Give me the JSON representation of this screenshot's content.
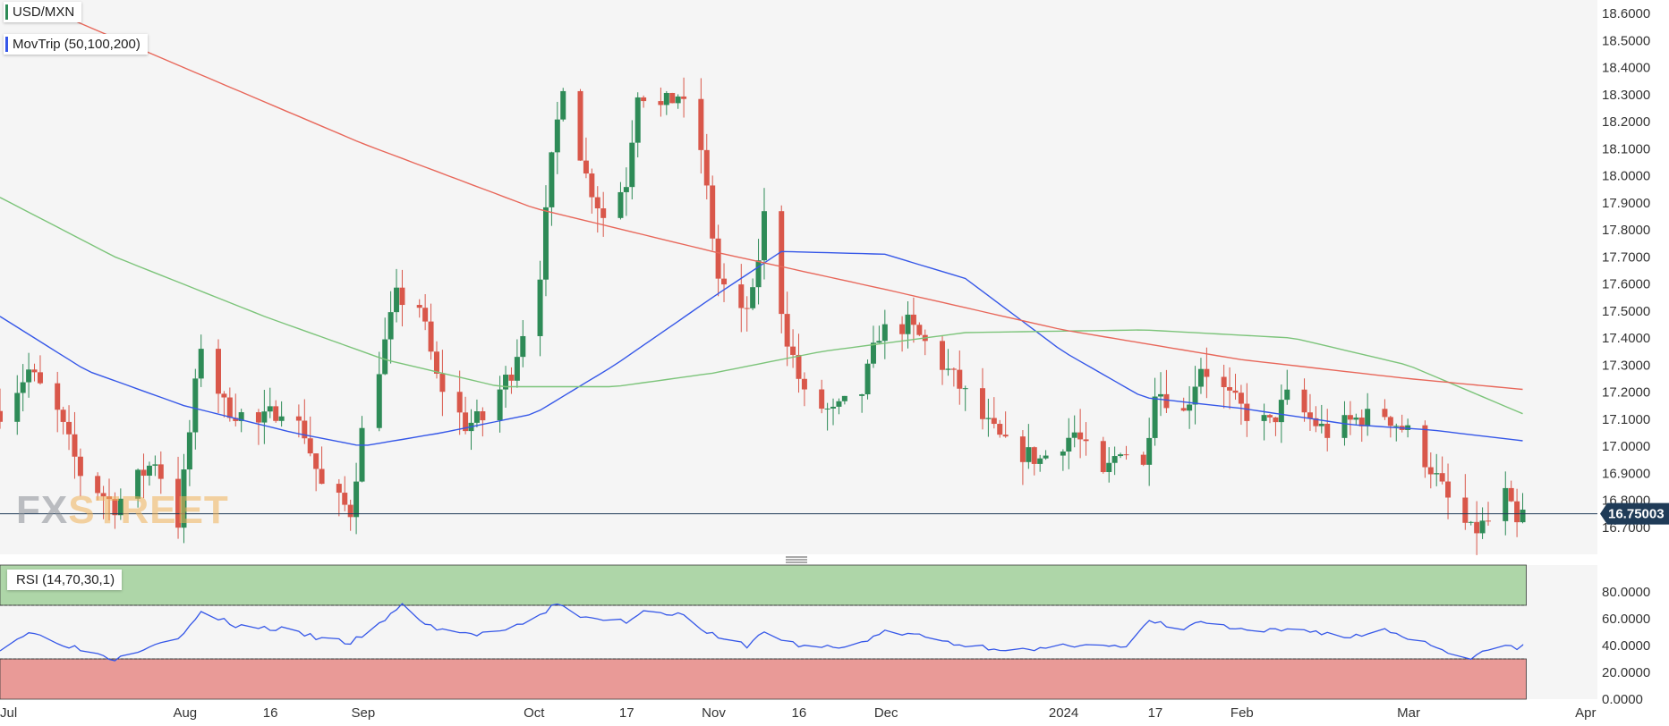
{
  "legend": {
    "pair": "USD/MXN",
    "moving_averages": "MovTrip (50,100,200)",
    "rsi": "RSI (14,70,30,1)"
  },
  "watermark": {
    "part1": "FX",
    "part2": "STREET"
  },
  "colors": {
    "bull": "#2e8b57",
    "bear": "#d9574a",
    "ma50": "#3557e8",
    "ma100": "#7cc47a",
    "ma200": "#e8675a",
    "rsi_line": "#3557e8",
    "overbought_zone": "#aed6a8",
    "oversold_zone": "#e99a97",
    "price_line": "#1f3b57",
    "price_badge": "#1f3b57"
  },
  "chart_data": {
    "type": "candlestick",
    "symbol": "USD/MXN",
    "last_price": "16.75003",
    "price_axis": {
      "ylim": [
        16.6,
        18.65
      ],
      "ticks": [
        "18.6000",
        "18.5000",
        "18.4000",
        "18.3000",
        "18.2000",
        "18.1000",
        "18.0000",
        "17.9000",
        "17.8000",
        "17.7000",
        "17.6000",
        "17.5000",
        "17.4000",
        "17.3000",
        "17.2000",
        "17.1000",
        "17.0000",
        "16.9000",
        "16.8000",
        "16.7000"
      ]
    },
    "rsi_axis": {
      "ylim": [
        0,
        100
      ],
      "ticks": [
        "80.0000",
        "60.0000",
        "40.0000",
        "20.0000",
        "0.0000"
      ],
      "overbought": 70,
      "oversold": 30
    },
    "x_axis": {
      "start": "2023-06-30",
      "end": "2024-04-03",
      "labels": [
        {
          "text": "Jul",
          "date": "2023-07-01"
        },
        {
          "text": "Aug",
          "date": "2023-08-01"
        },
        {
          "text": "16",
          "date": "2023-08-16"
        },
        {
          "text": "Sep",
          "date": "2023-09-01"
        },
        {
          "text": "Oct",
          "date": "2023-10-01"
        },
        {
          "text": "17",
          "date": "2023-10-17"
        },
        {
          "text": "Nov",
          "date": "2023-11-01"
        },
        {
          "text": "16",
          "date": "2023-11-16"
        },
        {
          "text": "Dec",
          "date": "2023-12-01"
        },
        {
          "text": "2024",
          "date": "2024-01-01"
        },
        {
          "text": "17",
          "date": "2024-01-17"
        },
        {
          "text": "Feb",
          "date": "2024-02-01"
        },
        {
          "text": "Mar",
          "date": "2024-03-01"
        },
        {
          "text": "Apr",
          "date": "2024-04-01"
        }
      ]
    },
    "close_anchors": [
      {
        "date": "2023-06-30",
        "value": 17.13
      },
      {
        "date": "2023-07-05",
        "value": 17.28
      },
      {
        "date": "2023-07-10",
        "value": 17.12
      },
      {
        "date": "2023-07-14",
        "value": 16.9
      },
      {
        "date": "2023-07-20",
        "value": 16.78
      },
      {
        "date": "2023-07-24",
        "value": 16.88
      },
      {
        "date": "2023-07-27",
        "value": 16.95
      },
      {
        "date": "2023-07-31",
        "value": 16.72
      },
      {
        "date": "2023-08-04",
        "value": 17.38
      },
      {
        "date": "2023-08-08",
        "value": 17.15
      },
      {
        "date": "2023-08-14",
        "value": 17.08
      },
      {
        "date": "2023-08-18",
        "value": 17.15
      },
      {
        "date": "2023-08-22",
        "value": 17.05
      },
      {
        "date": "2023-08-25",
        "value": 16.85
      },
      {
        "date": "2023-08-30",
        "value": 16.76
      },
      {
        "date": "2023-09-01",
        "value": 17.05
      },
      {
        "date": "2023-09-05",
        "value": 17.38
      },
      {
        "date": "2023-09-07",
        "value": 17.55
      },
      {
        "date": "2023-09-11",
        "value": 17.52
      },
      {
        "date": "2023-09-14",
        "value": 17.25
      },
      {
        "date": "2023-09-19",
        "value": 17.08
      },
      {
        "date": "2023-09-22",
        "value": 17.1
      },
      {
        "date": "2023-09-27",
        "value": 17.28
      },
      {
        "date": "2023-10-02",
        "value": 17.65
      },
      {
        "date": "2023-10-04",
        "value": 18.05
      },
      {
        "date": "2023-10-06",
        "value": 18.35
      },
      {
        "date": "2023-10-10",
        "value": 18.0
      },
      {
        "date": "2023-10-13",
        "value": 17.85
      },
      {
        "date": "2023-10-17",
        "value": 17.98
      },
      {
        "date": "2023-10-19",
        "value": 18.32
      },
      {
        "date": "2023-10-23",
        "value": 18.25
      },
      {
        "date": "2023-10-26",
        "value": 18.3
      },
      {
        "date": "2023-10-30",
        "value": 18.1
      },
      {
        "date": "2023-11-02",
        "value": 17.62
      },
      {
        "date": "2023-11-06",
        "value": 17.48
      },
      {
        "date": "2023-11-08",
        "value": 17.55
      },
      {
        "date": "2023-11-10",
        "value": 17.85
      },
      {
        "date": "2023-11-14",
        "value": 17.4
      },
      {
        "date": "2023-11-17",
        "value": 17.18
      },
      {
        "date": "2023-11-22",
        "value": 17.12
      },
      {
        "date": "2023-11-27",
        "value": 17.2
      },
      {
        "date": "2023-11-30",
        "value": 17.42
      },
      {
        "date": "2023-12-05",
        "value": 17.45
      },
      {
        "date": "2023-12-08",
        "value": 17.38
      },
      {
        "date": "2023-12-13",
        "value": 17.25
      },
      {
        "date": "2023-12-18",
        "value": 17.1
      },
      {
        "date": "2023-12-22",
        "value": 17.0
      },
      {
        "date": "2023-12-28",
        "value": 16.95
      },
      {
        "date": "2024-01-03",
        "value": 17.05
      },
      {
        "date": "2024-01-08",
        "value": 16.88
      },
      {
        "date": "2024-01-11",
        "value": 17.0
      },
      {
        "date": "2024-01-15",
        "value": 16.92
      },
      {
        "date": "2024-01-17",
        "value": 17.22
      },
      {
        "date": "2024-01-22",
        "value": 17.12
      },
      {
        "date": "2024-01-25",
        "value": 17.3
      },
      {
        "date": "2024-01-30",
        "value": 17.18
      },
      {
        "date": "2024-02-02",
        "value": 17.12
      },
      {
        "date": "2024-02-06",
        "value": 17.08
      },
      {
        "date": "2024-02-09",
        "value": 17.18
      },
      {
        "date": "2024-02-13",
        "value": 17.1
      },
      {
        "date": "2024-02-16",
        "value": 17.05
      },
      {
        "date": "2024-02-21",
        "value": 17.1
      },
      {
        "date": "2024-02-26",
        "value": 17.12
      },
      {
        "date": "2024-03-01",
        "value": 17.05
      },
      {
        "date": "2024-03-05",
        "value": 16.92
      },
      {
        "date": "2024-03-08",
        "value": 16.8
      },
      {
        "date": "2024-03-12",
        "value": 16.68
      },
      {
        "date": "2024-03-15",
        "value": 16.72
      },
      {
        "date": "2024-03-18",
        "value": 16.82
      },
      {
        "date": "2024-03-20",
        "value": 16.7
      },
      {
        "date": "2024-03-21",
        "value": 16.75
      }
    ],
    "moving_averages": [
      {
        "name": "MA50",
        "points": [
          {
            "date": "2023-06-30",
            "value": 17.48
          },
          {
            "date": "2023-07-15",
            "value": 17.28
          },
          {
            "date": "2023-08-01",
            "value": 17.15
          },
          {
            "date": "2023-08-20",
            "value": 17.05
          },
          {
            "date": "2023-09-01",
            "value": 17.0
          },
          {
            "date": "2023-09-15",
            "value": 17.05
          },
          {
            "date": "2023-10-01",
            "value": 17.12
          },
          {
            "date": "2023-10-15",
            "value": 17.3
          },
          {
            "date": "2023-11-01",
            "value": 17.55
          },
          {
            "date": "2023-11-13",
            "value": 17.72
          },
          {
            "date": "2023-12-01",
            "value": 17.71
          },
          {
            "date": "2023-12-15",
            "value": 17.62
          },
          {
            "date": "2024-01-01",
            "value": 17.35
          },
          {
            "date": "2024-01-15",
            "value": 17.18
          },
          {
            "date": "2024-02-01",
            "value": 17.14
          },
          {
            "date": "2024-02-20",
            "value": 17.08
          },
          {
            "date": "2024-03-05",
            "value": 17.06
          },
          {
            "date": "2024-03-21",
            "value": 17.02
          }
        ]
      },
      {
        "name": "MA100",
        "points": [
          {
            "date": "2023-06-30",
            "value": 17.92
          },
          {
            "date": "2023-07-20",
            "value": 17.7
          },
          {
            "date": "2023-08-15",
            "value": 17.48
          },
          {
            "date": "2023-09-05",
            "value": 17.32
          },
          {
            "date": "2023-09-25",
            "value": 17.22
          },
          {
            "date": "2023-10-15",
            "value": 17.22
          },
          {
            "date": "2023-11-01",
            "value": 17.27
          },
          {
            "date": "2023-11-20",
            "value": 17.35
          },
          {
            "date": "2023-12-15",
            "value": 17.42
          },
          {
            "date": "2024-01-15",
            "value": 17.43
          },
          {
            "date": "2024-02-10",
            "value": 17.4
          },
          {
            "date": "2024-03-01",
            "value": 17.3
          },
          {
            "date": "2024-03-21",
            "value": 17.12
          }
        ]
      },
      {
        "name": "MA200",
        "points": [
          {
            "date": "2023-07-10",
            "value": 18.6
          },
          {
            "date": "2023-08-01",
            "value": 18.4
          },
          {
            "date": "2023-09-01",
            "value": 18.12
          },
          {
            "date": "2023-10-01",
            "value": 17.88
          },
          {
            "date": "2023-11-01",
            "value": 17.72
          },
          {
            "date": "2023-12-01",
            "value": 17.58
          },
          {
            "date": "2024-01-01",
            "value": 17.43
          },
          {
            "date": "2024-02-01",
            "value": 17.32
          },
          {
            "date": "2024-03-01",
            "value": 17.25
          },
          {
            "date": "2024-03-21",
            "value": 17.21
          }
        ]
      }
    ],
    "rsi_anchors": [
      {
        "date": "2023-06-30",
        "value": 38
      },
      {
        "date": "2023-07-05",
        "value": 50
      },
      {
        "date": "2023-07-12",
        "value": 40
      },
      {
        "date": "2023-07-20",
        "value": 30
      },
      {
        "date": "2023-07-27",
        "value": 42
      },
      {
        "date": "2023-08-01",
        "value": 48
      },
      {
        "date": "2023-08-04",
        "value": 65
      },
      {
        "date": "2023-08-10",
        "value": 55
      },
      {
        "date": "2023-08-18",
        "value": 52
      },
      {
        "date": "2023-08-25",
        "value": 45
      },
      {
        "date": "2023-08-30",
        "value": 42
      },
      {
        "date": "2023-09-05",
        "value": 58
      },
      {
        "date": "2023-09-08",
        "value": 72
      },
      {
        "date": "2023-09-12",
        "value": 55
      },
      {
        "date": "2023-09-20",
        "value": 48
      },
      {
        "date": "2023-09-27",
        "value": 52
      },
      {
        "date": "2023-10-02",
        "value": 62
      },
      {
        "date": "2023-10-05",
        "value": 72
      },
      {
        "date": "2023-10-10",
        "value": 60
      },
      {
        "date": "2023-10-17",
        "value": 58
      },
      {
        "date": "2023-10-20",
        "value": 66
      },
      {
        "date": "2023-10-26",
        "value": 64
      },
      {
        "date": "2023-11-02",
        "value": 45
      },
      {
        "date": "2023-11-07",
        "value": 40
      },
      {
        "date": "2023-11-10",
        "value": 50
      },
      {
        "date": "2023-11-16",
        "value": 40
      },
      {
        "date": "2023-11-24",
        "value": 38
      },
      {
        "date": "2023-12-01",
        "value": 50
      },
      {
        "date": "2023-12-06",
        "value": 48
      },
      {
        "date": "2023-12-15",
        "value": 40
      },
      {
        "date": "2023-12-27",
        "value": 36
      },
      {
        "date": "2024-01-05",
        "value": 42
      },
      {
        "date": "2024-01-12",
        "value": 38
      },
      {
        "date": "2024-01-16",
        "value": 58
      },
      {
        "date": "2024-01-22",
        "value": 52
      },
      {
        "date": "2024-01-25",
        "value": 58
      },
      {
        "date": "2024-02-02",
        "value": 50
      },
      {
        "date": "2024-02-12",
        "value": 52
      },
      {
        "date": "2024-02-20",
        "value": 46
      },
      {
        "date": "2024-02-26",
        "value": 52
      },
      {
        "date": "2024-03-04",
        "value": 42
      },
      {
        "date": "2024-03-12",
        "value": 30
      },
      {
        "date": "2024-03-18",
        "value": 42
      },
      {
        "date": "2024-03-20",
        "value": 36
      },
      {
        "date": "2024-03-21",
        "value": 40
      }
    ]
  }
}
